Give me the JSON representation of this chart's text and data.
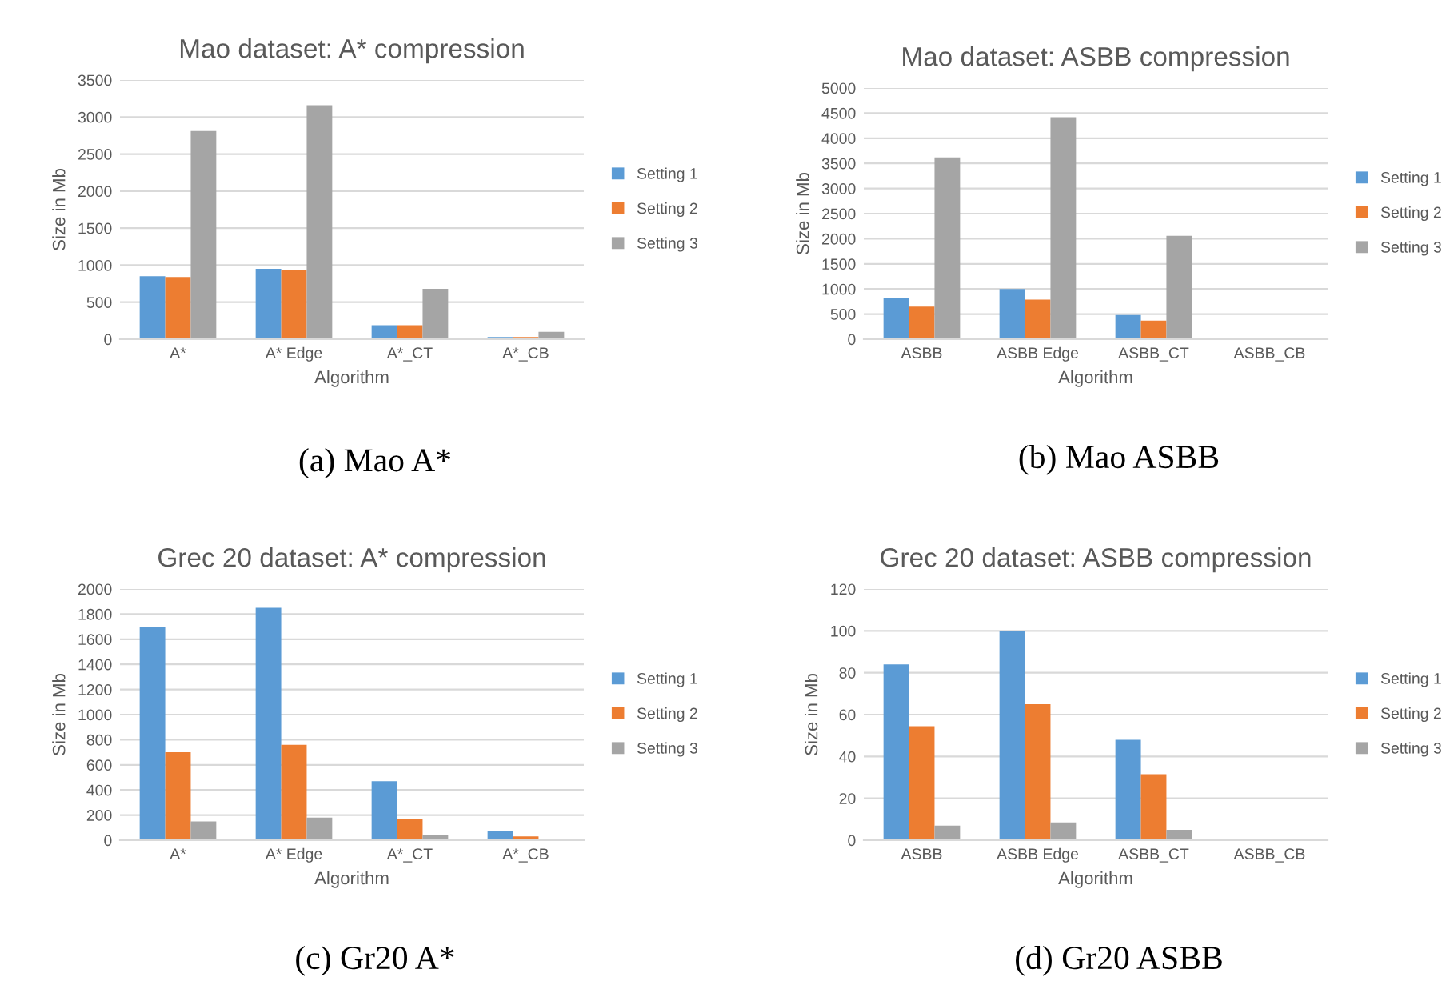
{
  "chart_data": [
    {
      "type": "bar",
      "title": "Mao dataset: A* compression",
      "xlabel": "Algorithm",
      "ylabel": "Size in Mb",
      "categories": [
        "A*",
        "A* Edge",
        "A*_CT",
        "A*_CB"
      ],
      "series": [
        {
          "name": "Setting 1",
          "color": "#5b9bd5",
          "values": [
            850,
            950,
            190,
            30
          ]
        },
        {
          "name": "Setting 2",
          "color": "#ed7d31",
          "values": [
            840,
            940,
            190,
            30
          ]
        },
        {
          "name": "Setting 3",
          "color": "#a5a5a5",
          "values": [
            2810,
            3160,
            680,
            100
          ]
        }
      ],
      "ylim": [
        0,
        3500
      ],
      "yticks": [
        0,
        500,
        1000,
        1500,
        2000,
        2500,
        3000,
        3500
      ],
      "grid": "y",
      "legend": "right",
      "annotations": [
        "(a) Mao A*"
      ]
    },
    {
      "type": "bar",
      "title": "Mao dataset: ASBB compression",
      "xlabel": "Algorithm",
      "ylabel": "Size in Mb",
      "categories": [
        "ASBB",
        "ASBB Edge",
        "ASBB_CT",
        "ASBB_CB"
      ],
      "series": [
        {
          "name": "Setting 1",
          "color": "#5b9bd5",
          "values": [
            820,
            1000,
            480,
            0
          ]
        },
        {
          "name": "Setting 2",
          "color": "#ed7d31",
          "values": [
            650,
            790,
            370,
            0
          ]
        },
        {
          "name": "Setting 3",
          "color": "#a5a5a5",
          "values": [
            3620,
            4420,
            2060,
            0
          ]
        }
      ],
      "ylim": [
        0,
        5000
      ],
      "yticks": [
        0,
        500,
        1000,
        1500,
        2000,
        2500,
        3000,
        3500,
        4000,
        4500,
        5000
      ],
      "grid": "y",
      "legend": "right",
      "annotations": [
        "(b) Mao ASBB"
      ]
    },
    {
      "type": "bar",
      "title": "Grec 20 dataset: A* compression",
      "xlabel": "Algorithm",
      "ylabel": "Size in Mb",
      "categories": [
        "A*",
        "A* Edge",
        "A*_CT",
        "A*_CB"
      ],
      "series": [
        {
          "name": "Setting 1",
          "color": "#5b9bd5",
          "values": [
            1700,
            1850,
            470,
            70
          ]
        },
        {
          "name": "Setting 2",
          "color": "#ed7d31",
          "values": [
            700,
            760,
            170,
            30
          ]
        },
        {
          "name": "Setting 3",
          "color": "#a5a5a5",
          "values": [
            150,
            180,
            40,
            0
          ]
        }
      ],
      "ylim": [
        0,
        2000
      ],
      "yticks": [
        0,
        200,
        400,
        600,
        800,
        1000,
        1200,
        1400,
        1600,
        1800,
        2000
      ],
      "grid": "y",
      "legend": "right",
      "annotations": [
        "(c) Gr20 A*"
      ]
    },
    {
      "type": "bar",
      "title": "Grec 20 dataset: ASBB compression",
      "xlabel": "Algorithm",
      "ylabel": "Size in Mb",
      "categories": [
        "ASBB",
        "ASBB Edge",
        "ASBB_CT",
        "ASBB_CB"
      ],
      "series": [
        {
          "name": "Setting 1",
          "color": "#5b9bd5",
          "values": [
            84,
            100,
            48,
            null
          ]
        },
        {
          "name": "Setting 2",
          "color": "#ed7d31",
          "values": [
            54.5,
            65,
            31.5,
            0
          ]
        },
        {
          "name": "Setting 3",
          "color": "#a5a5a5",
          "values": [
            7,
            8.5,
            5,
            0
          ]
        }
      ],
      "ylim": [
        0,
        120
      ],
      "yticks": [
        0,
        20,
        40,
        60,
        80,
        100,
        120
      ],
      "grid": "y",
      "legend": "right",
      "annotations": [
        "(d) Gr20 ASBB"
      ]
    }
  ]
}
